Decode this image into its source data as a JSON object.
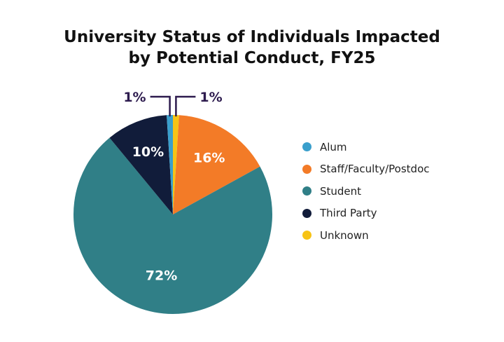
{
  "chart_data": {
    "type": "pie",
    "title_lines": [
      "University Status of Individuals Impacted",
      "by Potential Conduct, FY25"
    ],
    "legend_position": "right",
    "slices": [
      {
        "label": "Alum",
        "value": 1,
        "display": "1%",
        "color": "#3a9fcc"
      },
      {
        "label": "Staff/Faculty/Postdoc",
        "value": 16,
        "display": "16%",
        "color": "#f37b27"
      },
      {
        "label": "Student",
        "value": 72,
        "display": "72%",
        "color": "#307f87"
      },
      {
        "label": "Third Party",
        "value": 10,
        "display": "10%",
        "color": "#111c3a"
      },
      {
        "label": "Unknown",
        "value": 1,
        "display": "1%",
        "color": "#f7c315"
      }
    ]
  }
}
